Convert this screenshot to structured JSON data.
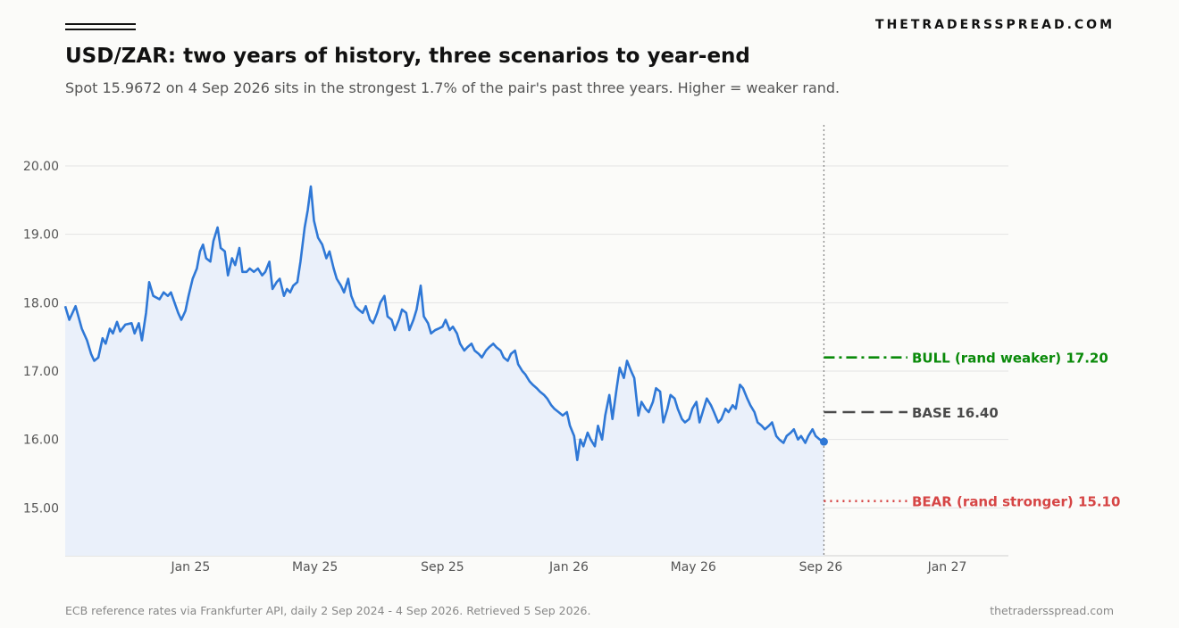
{
  "header": {
    "brand": "THETRADERSSPREAD.COM",
    "title": "USD/ZAR: two years of history, three scenarios to year-end",
    "subtitle": "Spot 15.9672 on 4 Sep 2026 sits in the strongest 1.7% of the pair's past three years. Higher = weaker rand."
  },
  "footer": {
    "source": "ECB reference rates via Frankfurter API, daily 2 Sep 2024 - 4 Sep 2026. Retrieved 5 Sep 2026.",
    "site": "thetradersspread.com"
  },
  "colors": {
    "line": "#2f78d6",
    "area": "#eaf0fa",
    "bull": "#0a8a0a",
    "base": "#4a4a4a",
    "bear": "#d64545",
    "grid": "#e3e3e3",
    "divider": "#888888"
  },
  "chart_data": {
    "type": "line",
    "x_axis": {
      "type": "date",
      "range": [
        "2024-09-02",
        "2027-03-01"
      ],
      "ticks": [
        "2025-01-01",
        "2025-05-01",
        "2025-09-01",
        "2026-01-01",
        "2026-05-01",
        "2026-09-01",
        "2027-01-01"
      ],
      "tick_labels": [
        "Jan 25",
        "May 25",
        "Sep 25",
        "Jan 26",
        "May 26",
        "Sep 26",
        "Jan 27"
      ]
    },
    "y_axis": {
      "range": [
        14.3,
        20.6
      ],
      "ticks": [
        15,
        16,
        17,
        18,
        19,
        20
      ],
      "tick_labels": [
        "15.00",
        "16.00",
        "17.00",
        "18.00",
        "19.00",
        "20.00"
      ]
    },
    "grid": true,
    "spot": {
      "date": "2026-09-04",
      "value": 15.9672
    },
    "series": [
      {
        "points": [
          [
            "2024-09-02",
            17.95
          ],
          [
            "2024-09-06",
            17.75
          ],
          [
            "2024-09-12",
            17.95
          ],
          [
            "2024-09-18",
            17.62
          ],
          [
            "2024-09-23",
            17.45
          ],
          [
            "2024-09-27",
            17.25
          ],
          [
            "2024-09-30",
            17.15
          ],
          [
            "2024-10-04",
            17.2
          ],
          [
            "2024-10-08",
            17.48
          ],
          [
            "2024-10-11",
            17.4
          ],
          [
            "2024-10-15",
            17.62
          ],
          [
            "2024-10-18",
            17.55
          ],
          [
            "2024-10-22",
            17.72
          ],
          [
            "2024-10-25",
            17.58
          ],
          [
            "2024-10-30",
            17.68
          ],
          [
            "2024-11-05",
            17.7
          ],
          [
            "2024-11-08",
            17.55
          ],
          [
            "2024-11-12",
            17.7
          ],
          [
            "2024-11-15",
            17.45
          ],
          [
            "2024-11-19",
            17.85
          ],
          [
            "2024-11-22",
            18.3
          ],
          [
            "2024-11-26",
            18.1
          ],
          [
            "2024-12-02",
            18.05
          ],
          [
            "2024-12-06",
            18.15
          ],
          [
            "2024-12-10",
            18.1
          ],
          [
            "2024-12-13",
            18.15
          ],
          [
            "2024-12-17",
            17.98
          ],
          [
            "2024-12-20",
            17.85
          ],
          [
            "2024-12-23",
            17.75
          ],
          [
            "2024-12-27",
            17.88
          ],
          [
            "2024-12-30",
            18.1
          ],
          [
            "2025-01-03",
            18.35
          ],
          [
            "2025-01-07",
            18.5
          ],
          [
            "2025-01-10",
            18.75
          ],
          [
            "2025-01-13",
            18.85
          ],
          [
            "2025-01-16",
            18.65
          ],
          [
            "2025-01-20",
            18.6
          ],
          [
            "2025-01-23",
            18.9
          ],
          [
            "2025-01-27",
            19.1
          ],
          [
            "2025-01-30",
            18.8
          ],
          [
            "2025-02-03",
            18.75
          ],
          [
            "2025-02-06",
            18.4
          ],
          [
            "2025-02-10",
            18.65
          ],
          [
            "2025-02-13",
            18.55
          ],
          [
            "2025-02-17",
            18.8
          ],
          [
            "2025-02-20",
            18.45
          ],
          [
            "2025-02-24",
            18.45
          ],
          [
            "2025-02-27",
            18.5
          ],
          [
            "2025-03-03",
            18.45
          ],
          [
            "2025-03-07",
            18.5
          ],
          [
            "2025-03-11",
            18.4
          ],
          [
            "2025-03-14",
            18.45
          ],
          [
            "2025-03-18",
            18.6
          ],
          [
            "2025-03-21",
            18.2
          ],
          [
            "2025-03-25",
            18.3
          ],
          [
            "2025-03-28",
            18.35
          ],
          [
            "2025-04-01",
            18.1
          ],
          [
            "2025-04-04",
            18.2
          ],
          [
            "2025-04-07",
            18.15
          ],
          [
            "2025-04-10",
            18.25
          ],
          [
            "2025-04-14",
            18.3
          ],
          [
            "2025-04-17",
            18.6
          ],
          [
            "2025-04-21",
            19.1
          ],
          [
            "2025-04-24",
            19.35
          ],
          [
            "2025-04-27",
            19.7
          ],
          [
            "2025-04-30",
            19.2
          ],
          [
            "2025-05-04",
            18.95
          ],
          [
            "2025-05-08",
            18.85
          ],
          [
            "2025-05-12",
            18.65
          ],
          [
            "2025-05-15",
            18.75
          ],
          [
            "2025-05-19",
            18.5
          ],
          [
            "2025-05-22",
            18.35
          ],
          [
            "2025-05-26",
            18.25
          ],
          [
            "2025-05-29",
            18.15
          ],
          [
            "2025-06-02",
            18.35
          ],
          [
            "2025-06-05",
            18.1
          ],
          [
            "2025-06-09",
            17.95
          ],
          [
            "2025-06-12",
            17.9
          ],
          [
            "2025-06-16",
            17.85
          ],
          [
            "2025-06-19",
            17.95
          ],
          [
            "2025-06-23",
            17.75
          ],
          [
            "2025-06-26",
            17.7
          ],
          [
            "2025-06-30",
            17.85
          ],
          [
            "2025-07-03",
            18.0
          ],
          [
            "2025-07-07",
            18.1
          ],
          [
            "2025-07-10",
            17.8
          ],
          [
            "2025-07-14",
            17.75
          ],
          [
            "2025-07-17",
            17.6
          ],
          [
            "2025-07-21",
            17.75
          ],
          [
            "2025-07-24",
            17.9
          ],
          [
            "2025-07-28",
            17.85
          ],
          [
            "2025-07-31",
            17.6
          ],
          [
            "2025-08-04",
            17.75
          ],
          [
            "2025-08-07",
            17.9
          ],
          [
            "2025-08-11",
            18.25
          ],
          [
            "2025-08-14",
            17.8
          ],
          [
            "2025-08-18",
            17.7
          ],
          [
            "2025-08-21",
            17.55
          ],
          [
            "2025-08-25",
            17.6
          ],
          [
            "2025-08-28",
            17.62
          ],
          [
            "2025-09-01",
            17.65
          ],
          [
            "2025-09-04",
            17.75
          ],
          [
            "2025-09-08",
            17.6
          ],
          [
            "2025-09-11",
            17.65
          ],
          [
            "2025-09-15",
            17.55
          ],
          [
            "2025-09-18",
            17.4
          ],
          [
            "2025-09-22",
            17.3
          ],
          [
            "2025-09-25",
            17.35
          ],
          [
            "2025-09-29",
            17.4
          ],
          [
            "2025-10-02",
            17.3
          ],
          [
            "2025-10-06",
            17.25
          ],
          [
            "2025-10-09",
            17.2
          ],
          [
            "2025-10-13",
            17.3
          ],
          [
            "2025-10-16",
            17.35
          ],
          [
            "2025-10-20",
            17.4
          ],
          [
            "2025-10-23",
            17.35
          ],
          [
            "2025-10-27",
            17.3
          ],
          [
            "2025-10-30",
            17.2
          ],
          [
            "2025-11-03",
            17.15
          ],
          [
            "2025-11-06",
            17.25
          ],
          [
            "2025-11-10",
            17.3
          ],
          [
            "2025-11-13",
            17.1
          ],
          [
            "2025-11-17",
            17.0
          ],
          [
            "2025-11-20",
            16.95
          ],
          [
            "2025-11-24",
            16.85
          ],
          [
            "2025-11-27",
            16.8
          ],
          [
            "2025-12-01",
            16.75
          ],
          [
            "2025-12-04",
            16.7
          ],
          [
            "2025-12-08",
            16.65
          ],
          [
            "2025-12-11",
            16.6
          ],
          [
            "2025-12-15",
            16.5
          ],
          [
            "2025-12-18",
            16.45
          ],
          [
            "2025-12-22",
            16.4
          ],
          [
            "2025-12-26",
            16.35
          ],
          [
            "2025-12-30",
            16.4
          ],
          [
            "2026-01-02",
            16.2
          ],
          [
            "2026-01-06",
            16.05
          ],
          [
            "2026-01-09",
            15.7
          ],
          [
            "2026-01-12",
            16.0
          ],
          [
            "2026-01-15",
            15.9
          ],
          [
            "2026-01-19",
            16.1
          ],
          [
            "2026-01-22",
            16.0
          ],
          [
            "2026-01-26",
            15.9
          ],
          [
            "2026-01-29",
            16.2
          ],
          [
            "2026-02-02",
            16.0
          ],
          [
            "2026-02-05",
            16.35
          ],
          [
            "2026-02-09",
            16.65
          ],
          [
            "2026-02-12",
            16.3
          ],
          [
            "2026-02-16",
            16.75
          ],
          [
            "2026-02-19",
            17.05
          ],
          [
            "2026-02-23",
            16.9
          ],
          [
            "2026-02-26",
            17.15
          ],
          [
            "2026-03-02",
            17.0
          ],
          [
            "2026-03-05",
            16.9
          ],
          [
            "2026-03-09",
            16.35
          ],
          [
            "2026-03-12",
            16.55
          ],
          [
            "2026-03-16",
            16.45
          ],
          [
            "2026-03-19",
            16.4
          ],
          [
            "2026-03-23",
            16.55
          ],
          [
            "2026-03-26",
            16.75
          ],
          [
            "2026-03-30",
            16.7
          ],
          [
            "2026-04-02",
            16.25
          ],
          [
            "2026-04-06",
            16.45
          ],
          [
            "2026-04-09",
            16.65
          ],
          [
            "2026-04-13",
            16.6
          ],
          [
            "2026-04-16",
            16.45
          ],
          [
            "2026-04-20",
            16.3
          ],
          [
            "2026-04-23",
            16.25
          ],
          [
            "2026-04-27",
            16.3
          ],
          [
            "2026-04-30",
            16.45
          ],
          [
            "2026-05-04",
            16.55
          ],
          [
            "2026-05-07",
            16.25
          ],
          [
            "2026-05-11",
            16.45
          ],
          [
            "2026-05-14",
            16.6
          ],
          [
            "2026-05-18",
            16.5
          ],
          [
            "2026-05-21",
            16.4
          ],
          [
            "2026-05-25",
            16.25
          ],
          [
            "2026-05-28",
            16.3
          ],
          [
            "2026-06-01",
            16.45
          ],
          [
            "2026-06-04",
            16.4
          ],
          [
            "2026-06-08",
            16.5
          ],
          [
            "2026-06-11",
            16.45
          ],
          [
            "2026-06-15",
            16.8
          ],
          [
            "2026-06-18",
            16.75
          ],
          [
            "2026-06-22",
            16.6
          ],
          [
            "2026-06-25",
            16.5
          ],
          [
            "2026-06-29",
            16.4
          ],
          [
            "2026-07-02",
            16.25
          ],
          [
            "2026-07-06",
            16.2
          ],
          [
            "2026-07-09",
            16.15
          ],
          [
            "2026-07-13",
            16.2
          ],
          [
            "2026-07-16",
            16.25
          ],
          [
            "2026-07-20",
            16.05
          ],
          [
            "2026-07-23",
            16.0
          ],
          [
            "2026-07-27",
            15.95
          ],
          [
            "2026-07-30",
            16.05
          ],
          [
            "2026-08-03",
            16.1
          ],
          [
            "2026-08-06",
            16.15
          ],
          [
            "2026-08-10",
            16.0
          ],
          [
            "2026-08-13",
            16.05
          ],
          [
            "2026-08-17",
            15.95
          ],
          [
            "2026-08-20",
            16.05
          ],
          [
            "2026-08-24",
            16.15
          ],
          [
            "2026-08-27",
            16.05
          ],
          [
            "2026-08-31",
            16.0
          ],
          [
            "2026-09-04",
            15.9672
          ]
        ]
      }
    ],
    "scenarios": [
      {
        "key": "bull",
        "label": "BULL (rand weaker)  17.20",
        "value": 17.2,
        "style": "dashdot"
      },
      {
        "key": "base",
        "label": "BASE  16.40",
        "value": 16.4,
        "style": "dashed"
      },
      {
        "key": "bear",
        "label": "BEAR (rand stronger)  15.10",
        "value": 15.1,
        "style": "dotted"
      }
    ],
    "scenario_end": "2026-12-31"
  }
}
